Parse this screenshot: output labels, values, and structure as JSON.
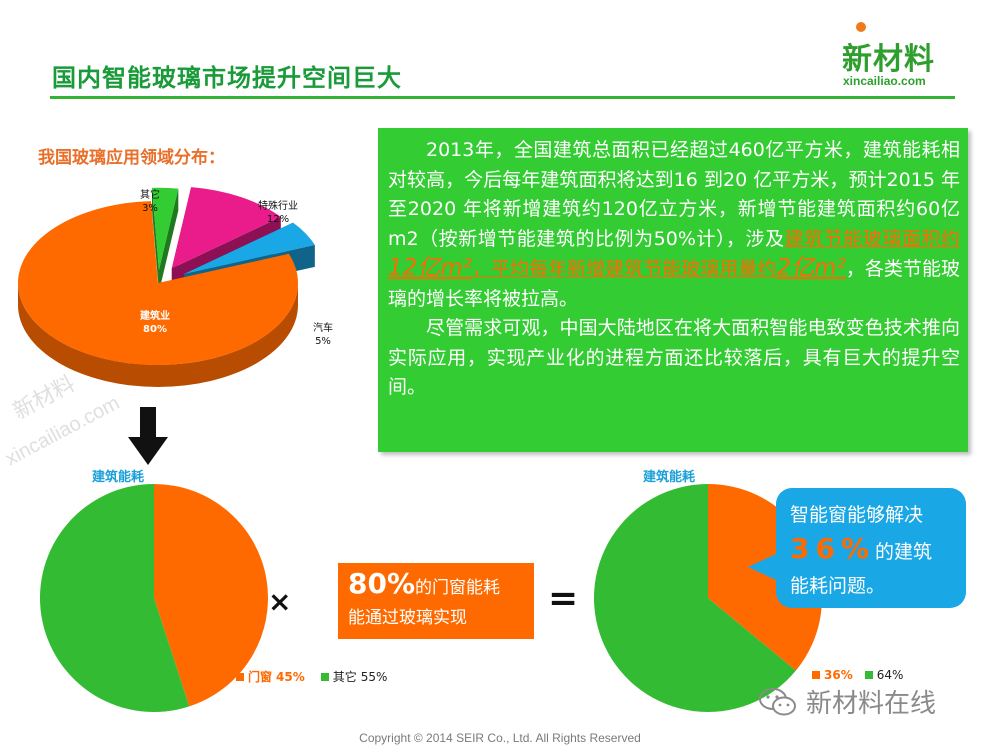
{
  "header": {
    "title": "国内智能玻璃市场提升空间巨大"
  },
  "logo": {
    "main": "新材料",
    "sub": "xincailiao.com"
  },
  "section_label": "我国玻璃应用领域分布：",
  "textbox": {
    "p1_a": "2013年，全国建筑总面积已经超过460亿平方米，建筑能耗相对较高，今后每年建筑面积将达到16 到20 亿平方米，预计2015 年至2020 年将新增建筑约120亿立方米，新增节能建筑面积约60亿m2（按新增节能建筑的比例为50%计），涉及",
    "p1_hl1": "建筑节能玻璃面积约",
    "p1_hl1_num": "12亿m²",
    "p1_hl2": "，平均每年新增建筑节能玻璃用量约",
    "p1_hl2_num": "2亿m²",
    "p1_b": "，各类节能玻璃的增长率将被拉高。",
    "p2": "尽管需求可观，中国大陆地区在将大面积智能电致变色技术推向实际应用，实现产业化的进程方面还比较落后，具有巨大的提升空间。"
  },
  "chart_data": [
    {
      "type": "pie",
      "title": "",
      "categories": [
        "建筑业",
        "汽车",
        "特殊行业",
        "其它"
      ],
      "values": [
        80,
        5,
        12,
        3
      ],
      "labels": [
        "80%",
        "5%",
        "12%",
        "3%"
      ],
      "colors": [
        "#ff6a00",
        "#1aa7e6",
        "#ea1b8a",
        "#33cc33"
      ],
      "style": "3d-exploded"
    },
    {
      "type": "pie",
      "title": "建筑能耗",
      "categories": [
        "门窗",
        "其它"
      ],
      "values": [
        45,
        55
      ],
      "labels": [
        "45%",
        "55%"
      ],
      "colors": [
        "#ff6a00",
        "#33bb33"
      ]
    },
    {
      "type": "pie",
      "title": "建筑能耗",
      "categories": [
        "",
        ""
      ],
      "values": [
        36,
        64
      ],
      "labels": [
        "36%",
        "64%"
      ],
      "colors": [
        "#ff6a00",
        "#33bb33"
      ]
    }
  ],
  "operators": {
    "times": "×",
    "equals": "="
  },
  "middle_box": {
    "big": "80%",
    "line1_rest": "的门窗能耗",
    "line2": "能通过玻璃实现"
  },
  "callout": {
    "line1": "智能窗能够解决",
    "big": "36%",
    "line2_rest": "的建筑",
    "line3": "能耗问题。"
  },
  "footer": {
    "wechat": "新材料在线",
    "copyright": "Copyright © 2014  SEIR Co., Ltd. All Rights Reserved"
  },
  "watermarks": [
    "新材料",
    "xincailiao.com"
  ],
  "icons": {
    "down_arrow": "down-arrow-icon",
    "wechat": "wechat-icon"
  }
}
